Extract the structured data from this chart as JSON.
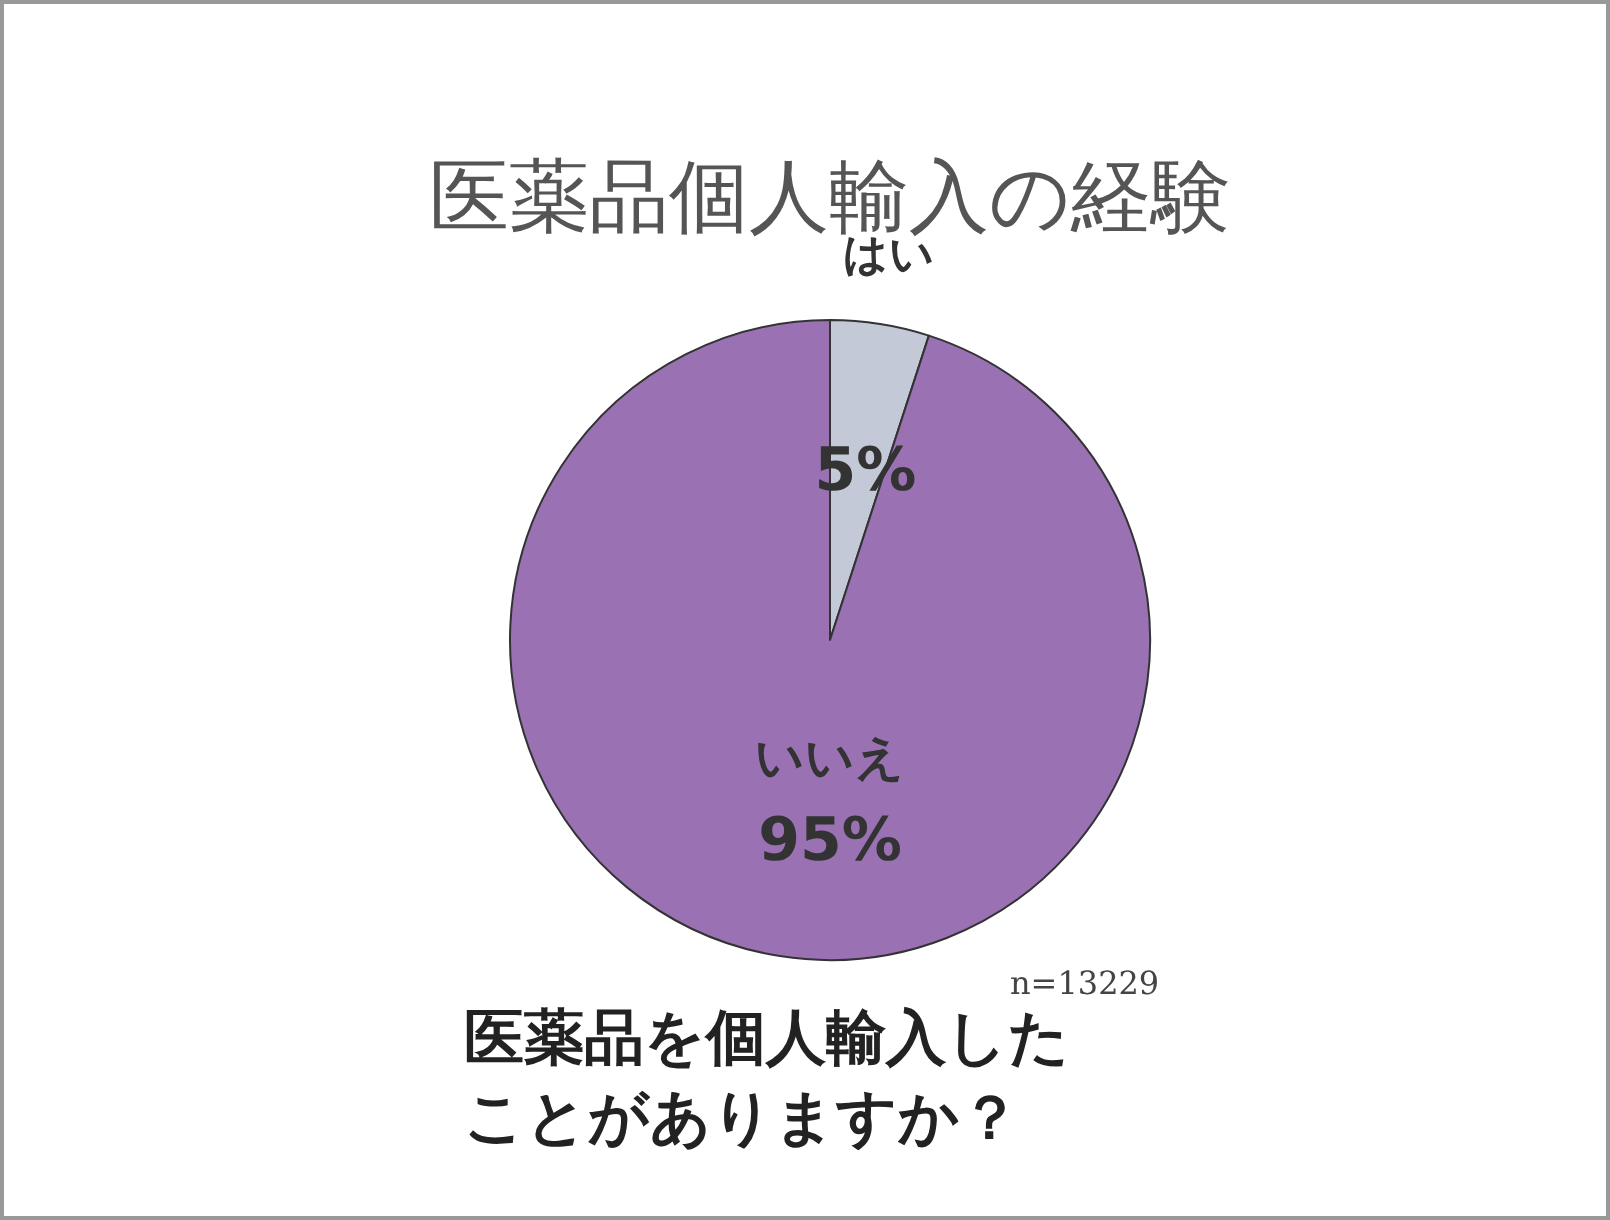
{
  "chart_data": {
    "type": "pie",
    "title": "医薬品個人輸入の経験",
    "categories": [
      "はい",
      "いいえ"
    ],
    "values": [
      5,
      95
    ],
    "colors": [
      "#c3c9d6",
      "#9a72b4"
    ],
    "value_labels": [
      "5%",
      "95%"
    ],
    "annotations": [
      "n=13229",
      "医薬品を個人輸入したことがありますか？"
    ]
  }
}
